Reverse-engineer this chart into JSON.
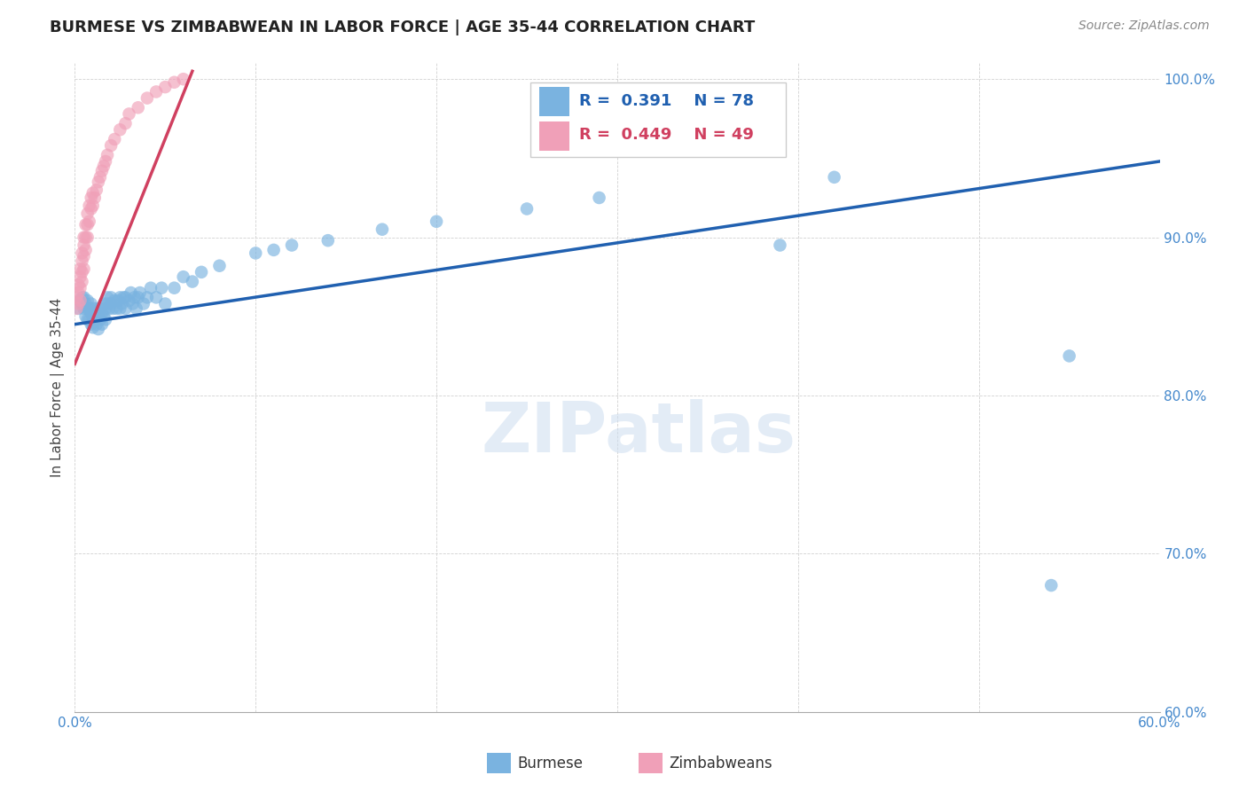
{
  "title": "BURMESE VS ZIMBABWEAN IN LABOR FORCE | AGE 35-44 CORRELATION CHART",
  "source_text": "Source: ZipAtlas.com",
  "ylabel": "In Labor Force | Age 35-44",
  "R_burmese": 0.391,
  "N_burmese": 78,
  "R_zimbabwean": 0.449,
  "N_zimbabwean": 49,
  "xlim": [
    0.0,
    0.6
  ],
  "ylim": [
    0.6,
    1.01
  ],
  "xticks": [
    0.0,
    0.1,
    0.2,
    0.3,
    0.4,
    0.5,
    0.6
  ],
  "yticks": [
    0.6,
    0.7,
    0.8,
    0.9,
    1.0
  ],
  "xtick_labels": [
    "0.0%",
    "",
    "",
    "",
    "",
    "",
    "60.0%"
  ],
  "ytick_labels": [
    "60.0%",
    "70.0%",
    "80.0%",
    "90.0%",
    "100.0%"
  ],
  "burmese_color": "#7ab3e0",
  "zimbabwean_color": "#f0a0b8",
  "burmese_line_color": "#2060b0",
  "zimbabwean_line_color": "#d04060",
  "background_color": "#ffffff",
  "watermark_text": "ZIPatlas",
  "title_fontsize": 13,
  "axis_label_fontsize": 11,
  "tick_fontsize": 11,
  "burmese_x": [
    0.002,
    0.003,
    0.004,
    0.004,
    0.005,
    0.005,
    0.006,
    0.006,
    0.007,
    0.007,
    0.007,
    0.008,
    0.008,
    0.009,
    0.009,
    0.009,
    0.01,
    0.01,
    0.01,
    0.011,
    0.011,
    0.012,
    0.012,
    0.013,
    0.013,
    0.014,
    0.014,
    0.015,
    0.015,
    0.016,
    0.016,
    0.017,
    0.017,
    0.018,
    0.018,
    0.019,
    0.02,
    0.02,
    0.021,
    0.022,
    0.023,
    0.024,
    0.025,
    0.025,
    0.026,
    0.027,
    0.028,
    0.028,
    0.03,
    0.031,
    0.032,
    0.033,
    0.034,
    0.035,
    0.036,
    0.038,
    0.04,
    0.042,
    0.045,
    0.048,
    0.05,
    0.055,
    0.06,
    0.065,
    0.07,
    0.08,
    0.1,
    0.11,
    0.12,
    0.14,
    0.17,
    0.2,
    0.25,
    0.29,
    0.39,
    0.42,
    0.54,
    0.55
  ],
  "burmese_y": [
    0.855,
    0.86,
    0.858,
    0.862,
    0.855,
    0.862,
    0.85,
    0.858,
    0.848,
    0.855,
    0.86,
    0.848,
    0.855,
    0.845,
    0.852,
    0.858,
    0.843,
    0.85,
    0.855,
    0.848,
    0.855,
    0.845,
    0.852,
    0.842,
    0.85,
    0.848,
    0.855,
    0.845,
    0.852,
    0.85,
    0.858,
    0.848,
    0.855,
    0.858,
    0.862,
    0.855,
    0.858,
    0.862,
    0.855,
    0.86,
    0.855,
    0.86,
    0.862,
    0.855,
    0.858,
    0.862,
    0.855,
    0.862,
    0.86,
    0.865,
    0.858,
    0.862,
    0.855,
    0.862,
    0.865,
    0.858,
    0.862,
    0.868,
    0.862,
    0.868,
    0.858,
    0.868,
    0.875,
    0.872,
    0.878,
    0.882,
    0.89,
    0.892,
    0.895,
    0.898,
    0.905,
    0.91,
    0.918,
    0.925,
    0.895,
    0.938,
    0.68,
    0.825
  ],
  "zimbabwean_x": [
    0.001,
    0.001,
    0.002,
    0.002,
    0.002,
    0.003,
    0.003,
    0.003,
    0.003,
    0.004,
    0.004,
    0.004,
    0.004,
    0.005,
    0.005,
    0.005,
    0.005,
    0.006,
    0.006,
    0.006,
    0.007,
    0.007,
    0.007,
    0.008,
    0.008,
    0.009,
    0.009,
    0.01,
    0.01,
    0.011,
    0.012,
    0.013,
    0.014,
    0.015,
    0.016,
    0.017,
    0.018,
    0.02,
    0.022,
    0.025,
    0.028,
    0.03,
    0.035,
    0.04,
    0.045,
    0.05,
    0.055,
    0.06,
    0.38
  ],
  "zimbabwean_y": [
    0.855,
    0.862,
    0.858,
    0.865,
    0.87,
    0.86,
    0.868,
    0.875,
    0.88,
    0.872,
    0.878,
    0.885,
    0.89,
    0.88,
    0.888,
    0.895,
    0.9,
    0.892,
    0.9,
    0.908,
    0.9,
    0.908,
    0.915,
    0.91,
    0.92,
    0.918,
    0.925,
    0.92,
    0.928,
    0.925,
    0.93,
    0.935,
    0.938,
    0.942,
    0.945,
    0.948,
    0.952,
    0.958,
    0.962,
    0.968,
    0.972,
    0.978,
    0.982,
    0.988,
    0.992,
    0.995,
    0.998,
    1.0,
    0.985
  ],
  "burmese_trendline": [
    0.0,
    0.6,
    0.845,
    0.948
  ],
  "zimbabwean_trendline": [
    0.0,
    0.065,
    0.82,
    1.005
  ]
}
